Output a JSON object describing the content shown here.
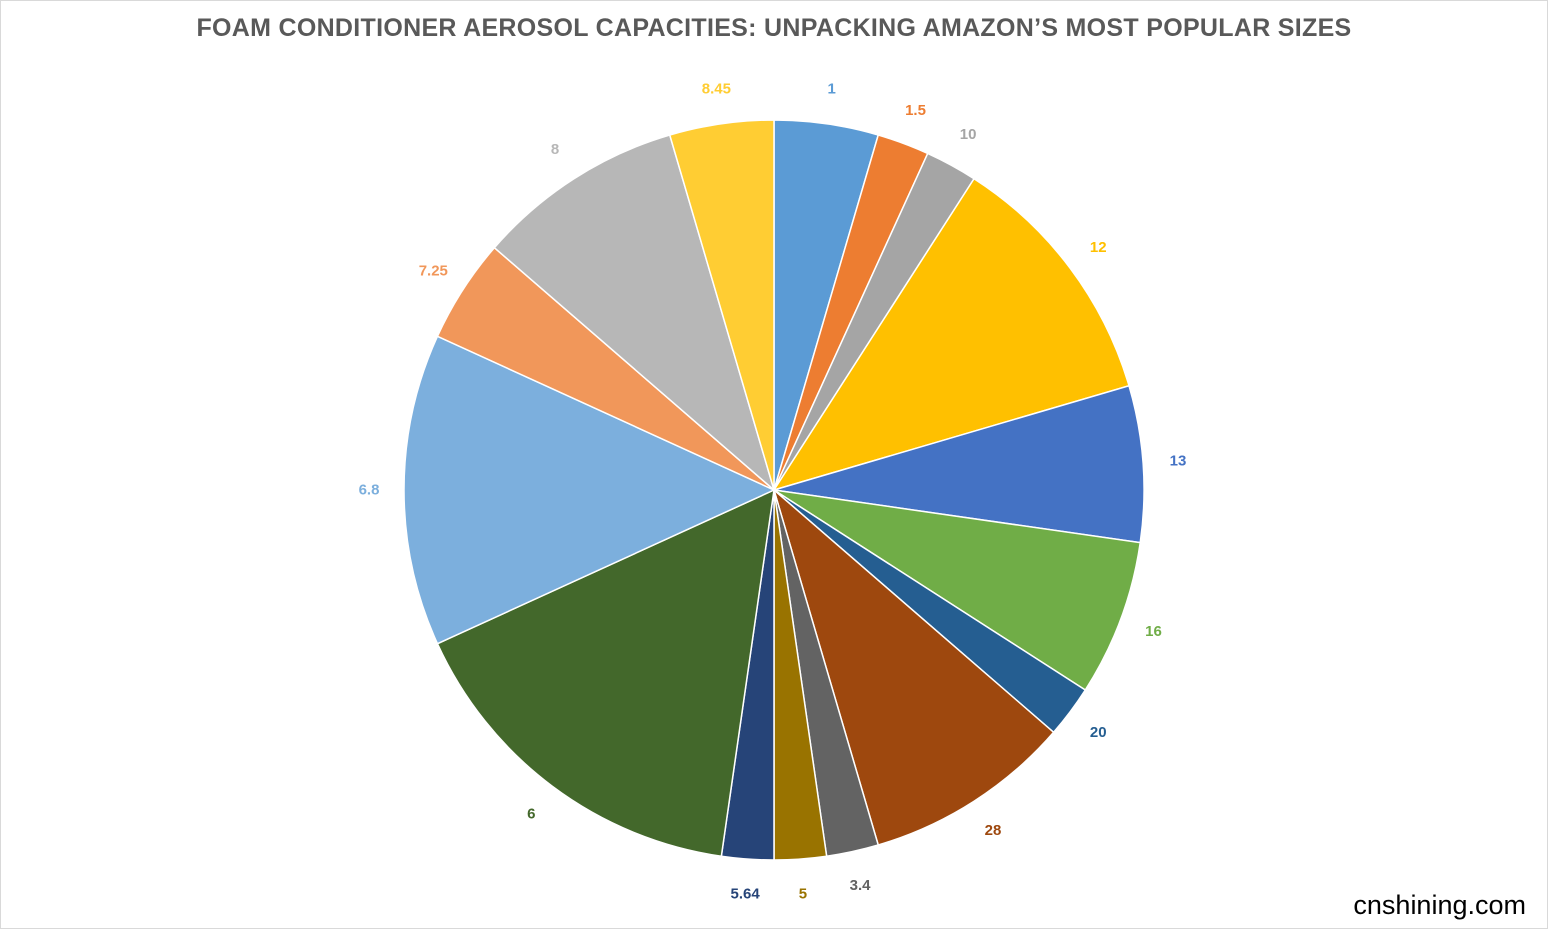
{
  "title": "FOAM CONDITIONER AEROSOL CAPACITIES: UNPACKING AMAZON’S MOST POPULAR SIZES",
  "watermark": "cnshining.com",
  "chart_data": {
    "type": "pie",
    "title": "FOAM CONDITIONER AEROSOL CAPACITIES: UNPACKING AMAZON’S MOST POPULAR SIZES",
    "legend": "none",
    "start_angle_deg": 0,
    "direction": "clockwise",
    "slices": [
      {
        "label": "1",
        "share": 4.6,
        "color": "#5B9BD5"
      },
      {
        "label": "1.5",
        "share": 2.3,
        "color": "#ED7D31"
      },
      {
        "label": "10",
        "share": 2.3,
        "color": "#A5A5A5"
      },
      {
        "label": "12",
        "share": 11.5,
        "color": "#FFC000"
      },
      {
        "label": "13",
        "share": 6.9,
        "color": "#4472C4"
      },
      {
        "label": "16",
        "share": 6.9,
        "color": "#70AD47"
      },
      {
        "label": "20",
        "share": 2.3,
        "color": "#255E91"
      },
      {
        "label": "28",
        "share": 9.2,
        "color": "#9E480E"
      },
      {
        "label": "3.4",
        "share": 2.3,
        "color": "#636363"
      },
      {
        "label": "5",
        "share": 2.3,
        "color": "#997300"
      },
      {
        "label": "5.64",
        "share": 2.3,
        "color": "#264478"
      },
      {
        "label": "6",
        "share": 16.1,
        "color": "#43682B"
      },
      {
        "label": "6.8",
        "share": 13.8,
        "color": "#7CAFDD"
      },
      {
        "label": "7.25",
        "share": 4.6,
        "color": "#F1975A"
      },
      {
        "label": "8",
        "share": 9.2,
        "color": "#B7B7B7"
      },
      {
        "label": "8.45",
        "share": 4.6,
        "color": "#FFCD33"
      }
    ]
  }
}
